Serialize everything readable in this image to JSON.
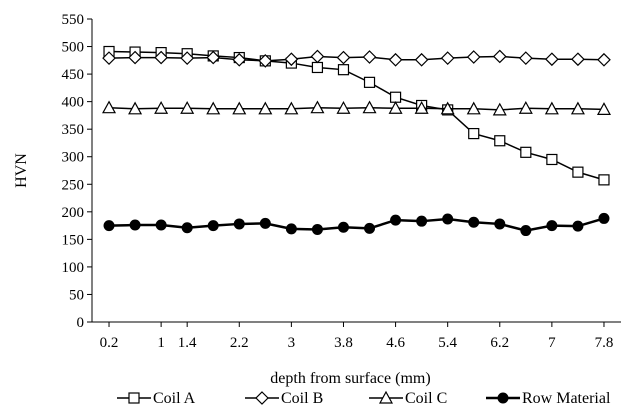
{
  "chart_data": {
    "type": "line",
    "xlabel": "depth from surface (mm)",
    "ylabel": "HVN",
    "ylim": [
      0,
      550
    ],
    "yticks": [
      0,
      50,
      100,
      150,
      200,
      250,
      300,
      350,
      400,
      450,
      500,
      550
    ],
    "xticks": [
      0.2,
      1,
      1.4,
      2.2,
      3,
      3.8,
      4.6,
      5.4,
      6.2,
      7,
      7.8
    ],
    "xtick_labels": [
      "0.2",
      "1",
      "1.4",
      "2.2",
      "3",
      "3.8",
      "4.6",
      "5.4",
      "6.2",
      "7",
      "7.8"
    ],
    "grid": false,
    "legend_position": "bottom",
    "x": [
      0.2,
      0.6,
      1.0,
      1.4,
      1.8,
      2.2,
      2.6,
      3.0,
      3.4,
      3.8,
      4.2,
      4.6,
      5.0,
      5.4,
      5.8,
      6.2,
      6.6,
      7.0,
      7.4,
      7.8
    ],
    "series": [
      {
        "name": "Coil A",
        "marker": "square-open",
        "values": [
          491,
          490,
          489,
          487,
          483,
          480,
          474,
          470,
          462,
          458,
          435,
          408,
          393,
          385,
          342,
          329,
          308,
          295,
          272,
          258
        ]
      },
      {
        "name": "Coil B",
        "marker": "diamond-open",
        "values": [
          479,
          480,
          480,
          479,
          480,
          476,
          474,
          477,
          482,
          480,
          481,
          476,
          476,
          479,
          481,
          482,
          479,
          477,
          477,
          476
        ]
      },
      {
        "name": "Coil C",
        "marker": "triangle-open",
        "values": [
          389,
          387,
          388,
          388,
          387,
          387,
          387,
          387,
          389,
          388,
          389,
          388,
          388,
          387,
          387,
          385,
          388,
          387,
          387,
          386
        ]
      },
      {
        "name": "Row Material",
        "marker": "circle-filled",
        "values": [
          175,
          176,
          176,
          171,
          175,
          178,
          179,
          169,
          168,
          172,
          170,
          185,
          183,
          187,
          181,
          178,
          166,
          175,
          174,
          188
        ]
      }
    ]
  }
}
